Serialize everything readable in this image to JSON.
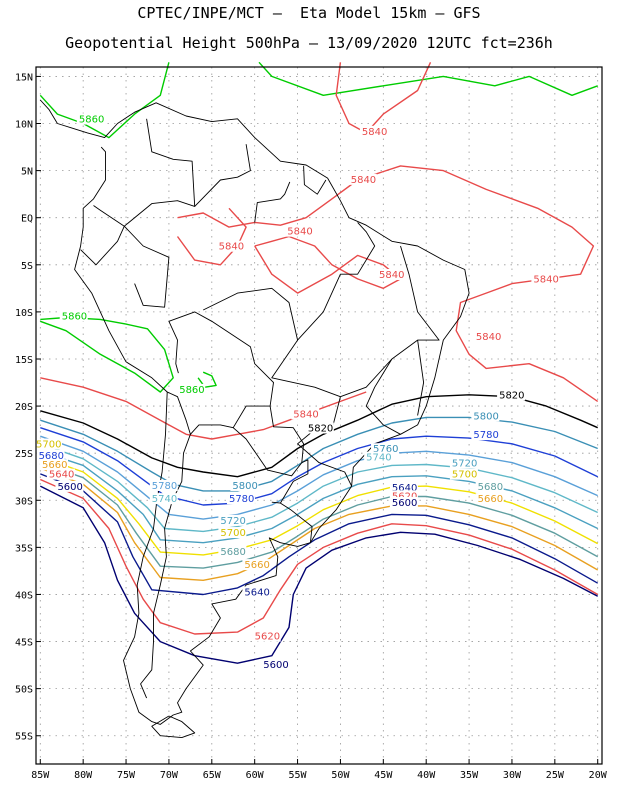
{
  "header": {
    "line1": "CPTEC/INPE/MCT –  Eta Model 15km – GFS",
    "line2": "Geopotential Height 500hPa – 13/09/2020 12UTC fct=236h"
  },
  "axes": {
    "lat_labels": [
      "15N",
      "10N",
      "5N",
      "EQ",
      "5S",
      "10S",
      "15S",
      "20S",
      "25S",
      "30S",
      "35S",
      "40S",
      "45S",
      "50S",
      "55S"
    ],
    "lon_labels": [
      "85W",
      "80W",
      "75W",
      "70W",
      "65W",
      "60W",
      "55W",
      "50W",
      "45W",
      "40W",
      "35W",
      "30W",
      "25W",
      "20W"
    ],
    "lat_range": [
      16,
      -58
    ],
    "lon_range": [
      -85.5,
      -19.5
    ]
  },
  "colors": {
    "c5860": "#00cc00",
    "c5840": "#e84a4a",
    "c5820": "#000000",
    "c5800": "#3a8fb5",
    "c5780": "#1e3fd6",
    "c5760": "#5aa0d8",
    "c5740": "#5fb8c8",
    "c5720": "#4aa0c0",
    "c5700": "#f0e000",
    "c5680": "#5f9ea0",
    "c5660": "#e8a020",
    "c5640": "#0a1a8c",
    "c5620": "#e84a4a",
    "c5600": "#000070",
    "coast": "#000000",
    "grid": "#999999"
  },
  "contour_labels": [
    {
      "text": "5860",
      "lon": -80.5,
      "lat": 10.1,
      "color": "#00cc00"
    },
    {
      "text": "5860",
      "lon": -82.5,
      "lat": -10.8,
      "color": "#00cc00"
    },
    {
      "text": "5860",
      "lon": -68.8,
      "lat": -18.6,
      "color": "#00cc00"
    },
    {
      "text": "5840",
      "lon": -47.5,
      "lat": 8.8,
      "color": "#e84a4a"
    },
    {
      "text": "5840",
      "lon": -48.8,
      "lat": 3.7,
      "color": "#e84a4a"
    },
    {
      "text": "5840",
      "lon": -56.2,
      "lat": -1.8,
      "color": "#e84a4a"
    },
    {
      "text": "5840",
      "lon": -64.2,
      "lat": -3.4,
      "color": "#e84a4a"
    },
    {
      "text": "5840",
      "lon": -45.5,
      "lat": -6.4,
      "color": "#e84a4a"
    },
    {
      "text": "5840",
      "lon": -27.5,
      "lat": -6.9,
      "color": "#e84a4a"
    },
    {
      "text": "5840",
      "lon": -34.2,
      "lat": -13.0,
      "color": "#e84a4a"
    },
    {
      "text": "5840",
      "lon": -55.5,
      "lat": -21.2,
      "color": "#e84a4a"
    },
    {
      "text": "5820",
      "lon": -31.5,
      "lat": -19.2,
      "color": "#000000"
    },
    {
      "text": "5820",
      "lon": -53.8,
      "lat": -22.7,
      "color": "#000000"
    },
    {
      "text": "5800",
      "lon": -34.5,
      "lat": -21.4,
      "color": "#3a8fb5"
    },
    {
      "text": "5800",
      "lon": -62.6,
      "lat": -28.8,
      "color": "#3a8fb5"
    },
    {
      "text": "5780",
      "lon": -34.5,
      "lat": -23.4,
      "color": "#1e3fd6"
    },
    {
      "text": "5780",
      "lon": -72.0,
      "lat": -28.8,
      "color": "#5aa0d8"
    },
    {
      "text": "5780",
      "lon": -63.0,
      "lat": -30.2,
      "color": "#1e3fd6"
    },
    {
      "text": "5760",
      "lon": -46.2,
      "lat": -24.9,
      "color": "#3a8fb5"
    },
    {
      "text": "5740",
      "lon": -47.0,
      "lat": -25.8,
      "color": "#5fb8c8"
    },
    {
      "text": "5740",
      "lon": -72.0,
      "lat": -30.2,
      "color": "#5fb8c8"
    },
    {
      "text": "5720",
      "lon": -37.0,
      "lat": -26.4,
      "color": "#4aa0c0"
    },
    {
      "text": "5720",
      "lon": -64.0,
      "lat": -32.5,
      "color": "#4aa0c0"
    },
    {
      "text": "5700",
      "lon": -37.0,
      "lat": -27.6,
      "color": "#d4c000"
    },
    {
      "text": "5700",
      "lon": -85.5,
      "lat": -24.4,
      "color": "#d4c000"
    },
    {
      "text": "5700",
      "lon": -64.0,
      "lat": -33.8,
      "color": "#d4c000"
    },
    {
      "text": "5680",
      "lon": -34.0,
      "lat": -28.9,
      "color": "#5f9ea0"
    },
    {
      "text": "5680",
      "lon": -85.2,
      "lat": -25.6,
      "color": "#1e3fd6"
    },
    {
      "text": "5680",
      "lon": -64.0,
      "lat": -35.8,
      "color": "#5f9ea0"
    },
    {
      "text": "5660",
      "lon": -34.0,
      "lat": -30.2,
      "color": "#e8a020"
    },
    {
      "text": "5660",
      "lon": -84.8,
      "lat": -26.6,
      "color": "#e8a020"
    },
    {
      "text": "5660",
      "lon": -61.2,
      "lat": -37.2,
      "color": "#e8a020"
    },
    {
      "text": "5640",
      "lon": -44.0,
      "lat": -29.0,
      "color": "#0a1a8c"
    },
    {
      "text": "5640",
      "lon": -84.0,
      "lat": -27.6,
      "color": "#e84a4a"
    },
    {
      "text": "5640",
      "lon": -61.2,
      "lat": -40.1,
      "color": "#0a1a8c"
    },
    {
      "text": "5620",
      "lon": -44.0,
      "lat": -29.9,
      "color": "#e84a4a"
    },
    {
      "text": "5620",
      "lon": -60.0,
      "lat": -44.8,
      "color": "#e84a4a"
    },
    {
      "text": "5600",
      "lon": -44.0,
      "lat": -30.6,
      "color": "#000070"
    },
    {
      "text": "5600",
      "lon": -83.0,
      "lat": -28.9,
      "color": "#000070"
    },
    {
      "text": "5600",
      "lon": -59.0,
      "lat": -47.8,
      "color": "#000070"
    }
  ]
}
